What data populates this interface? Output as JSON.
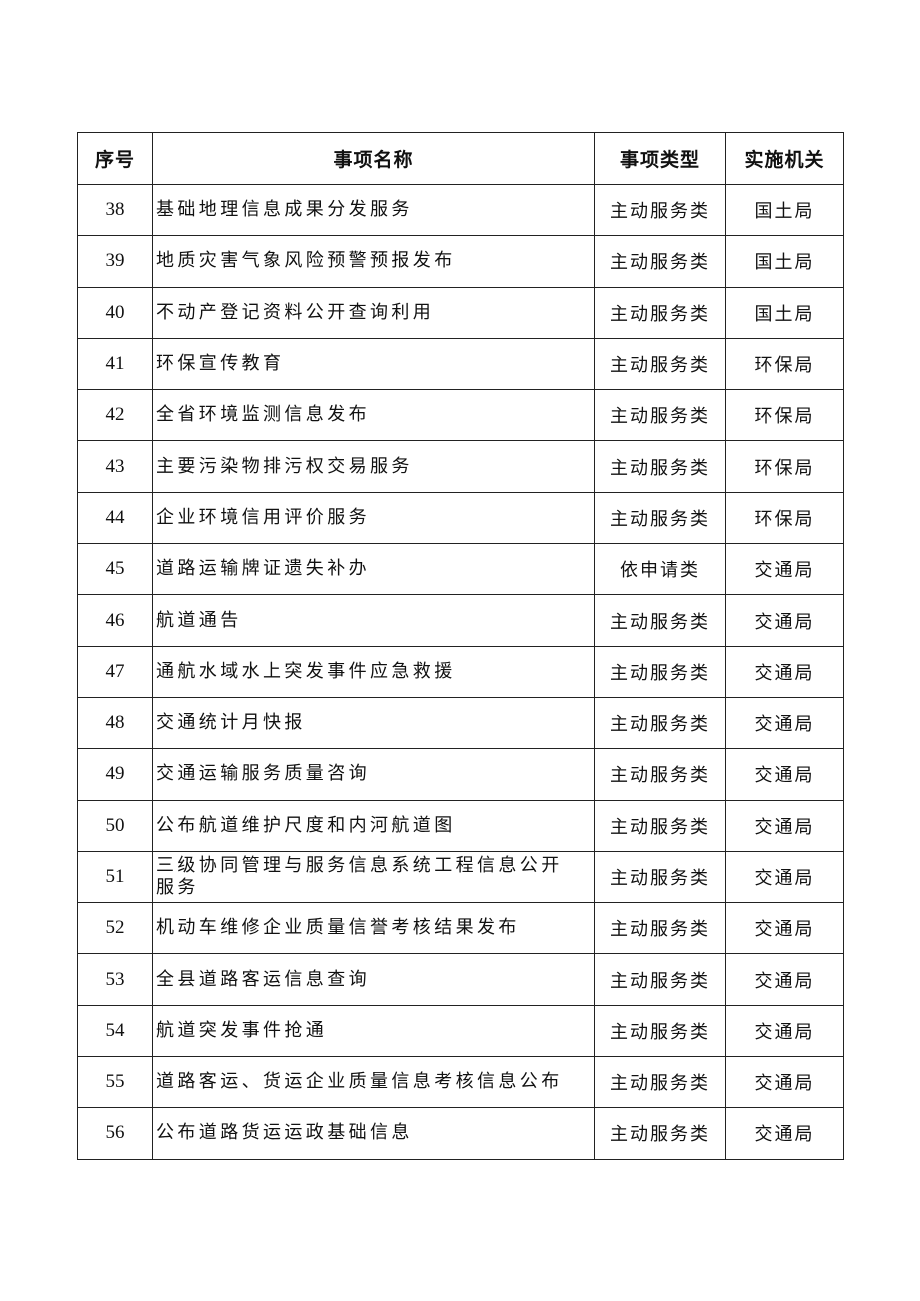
{
  "table": {
    "headers": [
      "序号",
      "事项名称",
      "事项类型",
      "实施机关"
    ],
    "rows": [
      {
        "no": "38",
        "name": "基础地理信息成果分发服务",
        "type": "主动服务类",
        "org": "国土局"
      },
      {
        "no": "39",
        "name": "地质灾害气象风险预警预报发布",
        "type": "主动服务类",
        "org": "国土局"
      },
      {
        "no": "40",
        "name": "不动产登记资料公开查询利用",
        "type": "主动服务类",
        "org": "国土局"
      },
      {
        "no": "41",
        "name": "环保宣传教育",
        "type": "主动服务类",
        "org": "环保局"
      },
      {
        "no": "42",
        "name": "全省环境监测信息发布",
        "type": "主动服务类",
        "org": "环保局"
      },
      {
        "no": "43",
        "name": "主要污染物排污权交易服务",
        "type": "主动服务类",
        "org": "环保局"
      },
      {
        "no": "44",
        "name": "企业环境信用评价服务",
        "type": "主动服务类",
        "org": "环保局"
      },
      {
        "no": "45",
        "name": "道路运输牌证遗失补办",
        "type": "依申请类",
        "org": "交通局"
      },
      {
        "no": "46",
        "name": "航道通告",
        "type": "主动服务类",
        "org": "交通局"
      },
      {
        "no": "47",
        "name": "通航水域水上突发事件应急救援",
        "type": "主动服务类",
        "org": "交通局"
      },
      {
        "no": "48",
        "name": "交通统计月快报",
        "type": "主动服务类",
        "org": "交通局"
      },
      {
        "no": "49",
        "name": "交通运输服务质量咨询",
        "type": "主动服务类",
        "org": "交通局"
      },
      {
        "no": "50",
        "name": "公布航道维护尺度和内河航道图",
        "type": "主动服务类",
        "org": "交通局"
      },
      {
        "no": "51",
        "name": "三级协同管理与服务信息系统工程信息公开服务",
        "type": "主动服务类",
        "org": "交通局"
      },
      {
        "no": "52",
        "name": "机动车维修企业质量信誉考核结果发布",
        "type": "主动服务类",
        "org": "交通局"
      },
      {
        "no": "53",
        "name": "全县道路客运信息查询",
        "type": "主动服务类",
        "org": "交通局"
      },
      {
        "no": "54",
        "name": "航道突发事件抢通",
        "type": "主动服务类",
        "org": "交通局"
      },
      {
        "no": "55",
        "name": "道路客运、货运企业质量信息考核信息公布",
        "type": "主动服务类",
        "org": "交通局"
      },
      {
        "no": "56",
        "name": "公布道路货运运政基础信息",
        "type": "主动服务类",
        "org": "交通局"
      }
    ]
  }
}
